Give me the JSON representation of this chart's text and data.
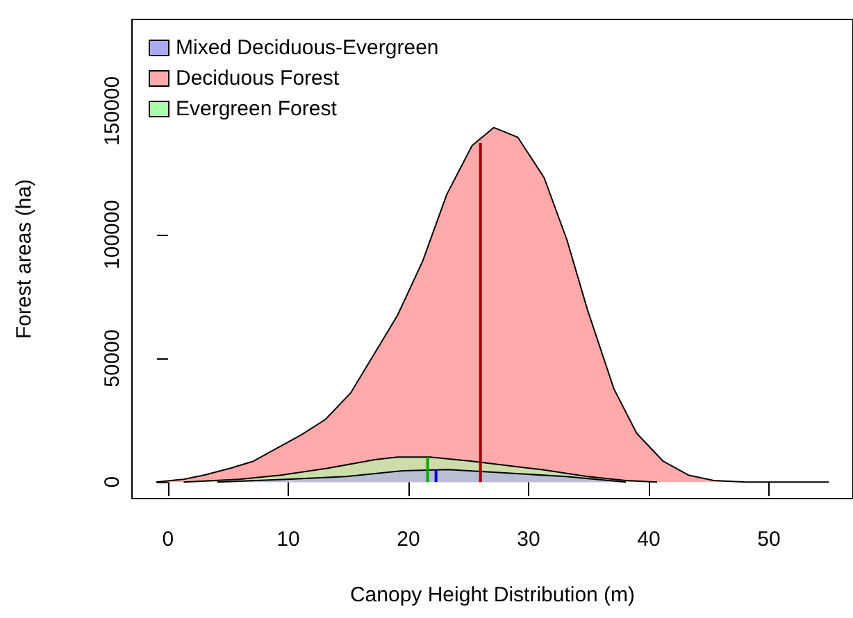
{
  "chart_data": {
    "type": "area",
    "xlabel": "Canopy Height Distribution (m)",
    "ylabel": "Forest areas (ha)",
    "xlim": [
      -3,
      57
    ],
    "xticks": [
      0,
      10,
      20,
      30,
      40,
      50
    ],
    "ylim": [
      -6700,
      187000
    ],
    "yticks": [
      0,
      50000,
      100000,
      150000
    ],
    "grid": false,
    "legend": "top left",
    "series": [
      {
        "name": "Deciduous Forest",
        "color": "#ffaaaa",
        "x": [
          -1,
          1.3,
          3,
          5.2,
          7.1,
          11.1,
          13.1,
          15.2,
          19.1,
          21.2,
          23.2,
          25.3,
          27.1,
          29.1,
          31.3,
          33.2,
          34.9,
          37.1,
          39,
          41.2,
          43.3,
          45.4,
          48.1,
          55
        ],
        "values": [
          0,
          1100,
          2800,
          5600,
          8400,
          19100,
          25300,
          36000,
          67400,
          89400,
          116300,
          136000,
          143300,
          139400,
          123000,
          97800,
          69700,
          37700,
          19700,
          8400,
          2800,
          600,
          0,
          0
        ]
      },
      {
        "name": "Evergreen Forest",
        "color": "#aaffaa",
        "x": [
          1.3,
          5.9,
          9.4,
          13.3,
          17.2,
          19.1,
          21.8,
          25.3,
          31.1,
          34.9,
          38.1,
          40.7
        ],
        "values": [
          0,
          1100,
          2800,
          5600,
          9000,
          10100,
          10100,
          8400,
          5000,
          2200,
          600,
          0
        ]
      },
      {
        "name": "Mixed Deciduous-Evergreen",
        "color": "#aaaaf0",
        "x": [
          4.1,
          9.9,
          14.8,
          19.5,
          23.3,
          27.3,
          33.1,
          38.1
        ],
        "values": [
          0,
          1100,
          2200,
          4500,
          5000,
          3900,
          2200,
          0
        ]
      },
      {
        "type": "line",
        "color": "#990000",
        "x": [
          26,
          26
        ],
        "values": [
          0,
          137000
        ]
      },
      {
        "type": "line",
        "color": "#00aa00",
        "x": [
          21.6,
          21.6
        ],
        "values": [
          0,
          10100
        ]
      },
      {
        "type": "line",
        "color": "#0000cc",
        "x": [
          22.3,
          22.3
        ],
        "values": [
          0,
          5000
        ]
      }
    ]
  }
}
